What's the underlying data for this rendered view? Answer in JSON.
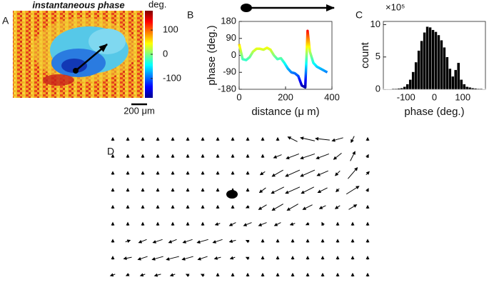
{
  "chart_data": [
    {
      "type": "heatmap",
      "panel": "A",
      "title": "instantaneous phase",
      "colorbar_label": "deg.",
      "clim": [
        -180,
        180
      ],
      "colorbar_ticks": [
        100,
        0,
        -100
      ],
      "colormap": "jet",
      "scale_bar_label": "200 μm"
    },
    {
      "type": "line",
      "panel": "B",
      "xlabel": "distance (μ m)",
      "ylabel": "phase (deg.)",
      "x": [
        0,
        15,
        30,
        45,
        60,
        75,
        90,
        105,
        120,
        135,
        150,
        165,
        180,
        195,
        210,
        225,
        240,
        255,
        270,
        285,
        295,
        305,
        320,
        335,
        350,
        365,
        380
      ],
      "values": [
        60,
        -20,
        -25,
        -10,
        20,
        35,
        35,
        30,
        40,
        30,
        0,
        -20,
        -15,
        -40,
        -70,
        -90,
        -95,
        -110,
        -160,
        -170,
        130,
        20,
        -40,
        -60,
        -70,
        -80,
        -90
      ],
      "xlim": [
        0,
        400
      ],
      "ylim": [
        -180,
        180
      ],
      "xticks": [
        0,
        200,
        400
      ],
      "yticks": [
        -180,
        -90,
        0,
        90,
        180
      ],
      "colormap": "jet"
    },
    {
      "type": "histogram",
      "panel": "C",
      "xlabel": "phase (deg.)",
      "ylabel": "count",
      "y_exponent_label": "×10⁵",
      "bins": [
        -180,
        -170,
        -160,
        -150,
        -140,
        -130,
        -120,
        -110,
        -100,
        -90,
        -80,
        -70,
        -60,
        -50,
        -40,
        -30,
        -20,
        -10,
        0,
        10,
        20,
        30,
        40,
        50,
        60,
        70,
        80,
        90,
        100,
        110,
        120,
        130,
        140,
        150,
        160,
        170,
        180
      ],
      "counts": [
        0.05,
        0.05,
        0.05,
        0.1,
        0.1,
        0.15,
        0.2,
        0.4,
        0.8,
        1.5,
        2.7,
        4.2,
        6.0,
        7.5,
        8.8,
        9.7,
        9.6,
        9.2,
        8.9,
        8.4,
        7.6,
        6.5,
        5.0,
        3.2,
        2.0,
        3.0,
        4.1,
        1.5,
        0.8,
        0.4,
        0.3,
        0.2,
        0.15,
        0.1,
        0.1,
        0.05
      ],
      "color": "#000000",
      "xlim": [
        -180,
        180
      ],
      "ylim": [
        0,
        10.5
      ],
      "xticks": [
        -100,
        0,
        100
      ],
      "yticks": [
        0,
        5,
        10
      ]
    },
    {
      "type": "quiver",
      "panel": "D",
      "color": "#000000",
      "u": [
        [
          0,
          0,
          0,
          0,
          0,
          0,
          0,
          0,
          0,
          0,
          0,
          0,
          -0.6,
          -0.9,
          -0.9,
          -0.7,
          -0.2,
          0
        ],
        [
          0,
          0,
          0,
          0,
          0,
          0,
          0,
          0,
          0,
          0,
          0,
          -0.5,
          -0.8,
          -0.9,
          -0.8,
          -0.5,
          0.3,
          0.1
        ],
        [
          0,
          0,
          0,
          0,
          0,
          0,
          0,
          0,
          0,
          0,
          -0.3,
          -0.7,
          -0.9,
          -0.9,
          -0.7,
          -0.3,
          0.6,
          0.2
        ],
        [
          0,
          0,
          0,
          0,
          0,
          0,
          0,
          0,
          0,
          0,
          -0.4,
          -0.8,
          -0.9,
          -0.8,
          -0.6,
          -0.2,
          0.8,
          0.1
        ],
        [
          0,
          0,
          0,
          0,
          0,
          0,
          0,
          0,
          0,
          -0.2,
          -0.5,
          -0.7,
          -0.7,
          -0.6,
          -0.4,
          -0.3,
          0.5,
          0
        ],
        [
          0,
          0,
          0,
          0,
          0,
          0,
          0,
          -0.3,
          -0.4,
          -0.5,
          -0.5,
          -0.4,
          -0.3,
          -0.2,
          -0.1,
          0,
          0,
          0
        ],
        [
          0,
          0.3,
          -0.5,
          -0.6,
          -0.5,
          -0.6,
          -0.7,
          -0.6,
          -0.4,
          -0.2,
          0,
          0,
          0,
          0,
          0,
          0,
          0,
          0
        ],
        [
          0,
          -0.5,
          -0.6,
          -0.7,
          -0.8,
          -0.7,
          -0.6,
          -0.4,
          -0.3,
          -0.2,
          0,
          0,
          0,
          0,
          0,
          0,
          0,
          0
        ],
        [
          -0.3,
          -0.2,
          -0.3,
          -0.4,
          -0.3,
          -0.2,
          -0.2,
          0,
          0,
          0,
          0,
          0,
          0,
          0,
          0,
          0,
          0,
          0
        ]
      ],
      "v": [
        [
          0.2,
          0.2,
          0.2,
          0.2,
          0.2,
          0.2,
          0.2,
          0.2,
          0.2,
          0.2,
          0.2,
          0.2,
          0.3,
          0.2,
          0.1,
          -0.2,
          -0.4,
          0.2
        ],
        [
          0.2,
          0.2,
          0.2,
          0.2,
          0.2,
          0.2,
          0.2,
          0.2,
          0.2,
          0.2,
          0.2,
          -0.2,
          -0.3,
          -0.3,
          -0.3,
          -0.4,
          0.6,
          0.2
        ],
        [
          0.2,
          0.2,
          0.2,
          0.2,
          0.2,
          0.2,
          0.2,
          0.2,
          0.2,
          0.2,
          -0.2,
          -0.4,
          -0.4,
          -0.4,
          -0.3,
          -0.3,
          0.7,
          0.2
        ],
        [
          0.2,
          0.2,
          0.2,
          0.2,
          0.2,
          0.2,
          0.2,
          0.2,
          0.2,
          0.2,
          -0.3,
          -0.4,
          -0.4,
          -0.4,
          -0.3,
          -0.2,
          0.5,
          0.2
        ],
        [
          0.2,
          0.2,
          0.2,
          0.2,
          0.2,
          0.2,
          0.2,
          0.2,
          0.2,
          -0.1,
          -0.3,
          -0.4,
          -0.4,
          -0.3,
          -0.2,
          -0.2,
          0.3,
          0.2
        ],
        [
          0.2,
          0.2,
          0.2,
          0.2,
          0.2,
          0.2,
          0.2,
          -0.1,
          -0.2,
          -0.2,
          -0.2,
          -0.2,
          -0.1,
          -0.1,
          0.2,
          0.2,
          0.2,
          0.2
        ],
        [
          0.2,
          0.1,
          -0.2,
          -0.2,
          -0.2,
          -0.2,
          -0.2,
          -0.2,
          -0.1,
          0.1,
          0.2,
          0.2,
          0.2,
          0.2,
          0.2,
          0.2,
          0.2,
          0.2
        ],
        [
          0.2,
          -0.1,
          -0.2,
          -0.2,
          -0.2,
          -0.2,
          -0.2,
          -0.1,
          -0.1,
          0.1,
          0.2,
          0.2,
          0.2,
          0.2,
          0.2,
          0.2,
          0.2,
          0.2
        ],
        [
          -0.1,
          -0.1,
          -0.1,
          -0.1,
          -0.1,
          0.1,
          0.1,
          0.2,
          0.2,
          0.2,
          0.2,
          0.2,
          0.2,
          0.2,
          0.2,
          0.2,
          0.2,
          0.2
        ]
      ]
    }
  ]
}
